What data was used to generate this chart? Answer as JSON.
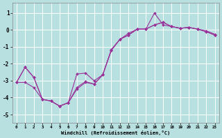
{
  "xlabel": "Windchill (Refroidissement éolien,°C)",
  "background_color": "#b8e0e0",
  "grid_color": "#ffffff",
  "line_color": "#993399",
  "xlim": [
    -0.5,
    23.5
  ],
  "ylim": [
    -5.5,
    1.6
  ],
  "yticks": [
    -5,
    -4,
    -3,
    -2,
    -1,
    0,
    1
  ],
  "xticks": [
    0,
    1,
    2,
    3,
    4,
    5,
    6,
    7,
    8,
    9,
    10,
    11,
    12,
    13,
    14,
    15,
    16,
    17,
    18,
    19,
    20,
    21,
    22,
    23
  ],
  "hours": [
    0,
    1,
    2,
    3,
    4,
    5,
    6,
    7,
    8,
    9,
    10,
    11,
    12,
    13,
    14,
    15,
    16,
    17,
    18,
    19,
    20,
    21,
    22,
    23
  ],
  "line1": [
    -3.1,
    -2.2,
    -2.8,
    -4.1,
    -4.2,
    -4.5,
    -4.3,
    -3.5,
    -3.1,
    -3.2,
    -2.65,
    -1.2,
    -0.55,
    -0.3,
    0.05,
    0.05,
    0.3,
    0.45,
    0.2,
    0.1,
    0.15,
    0.05,
    -0.1,
    -0.3
  ],
  "line2": [
    -3.1,
    -2.2,
    -2.8,
    -4.1,
    -4.2,
    -4.5,
    -4.3,
    -2.6,
    -2.55,
    -3.0,
    -2.65,
    -1.15,
    -0.55,
    -0.2,
    0.05,
    0.05,
    1.0,
    0.3,
    0.2,
    0.1,
    0.15,
    0.05,
    -0.05,
    -0.25
  ],
  "line3": [
    -3.1,
    -3.1,
    -3.4,
    -4.1,
    -4.2,
    -4.5,
    -4.3,
    -3.4,
    -3.05,
    -3.2,
    -2.65,
    -1.2,
    -0.55,
    -0.3,
    0.05,
    0.05,
    0.3,
    0.45,
    0.2,
    0.1,
    0.15,
    0.05,
    -0.1,
    -0.3
  ]
}
